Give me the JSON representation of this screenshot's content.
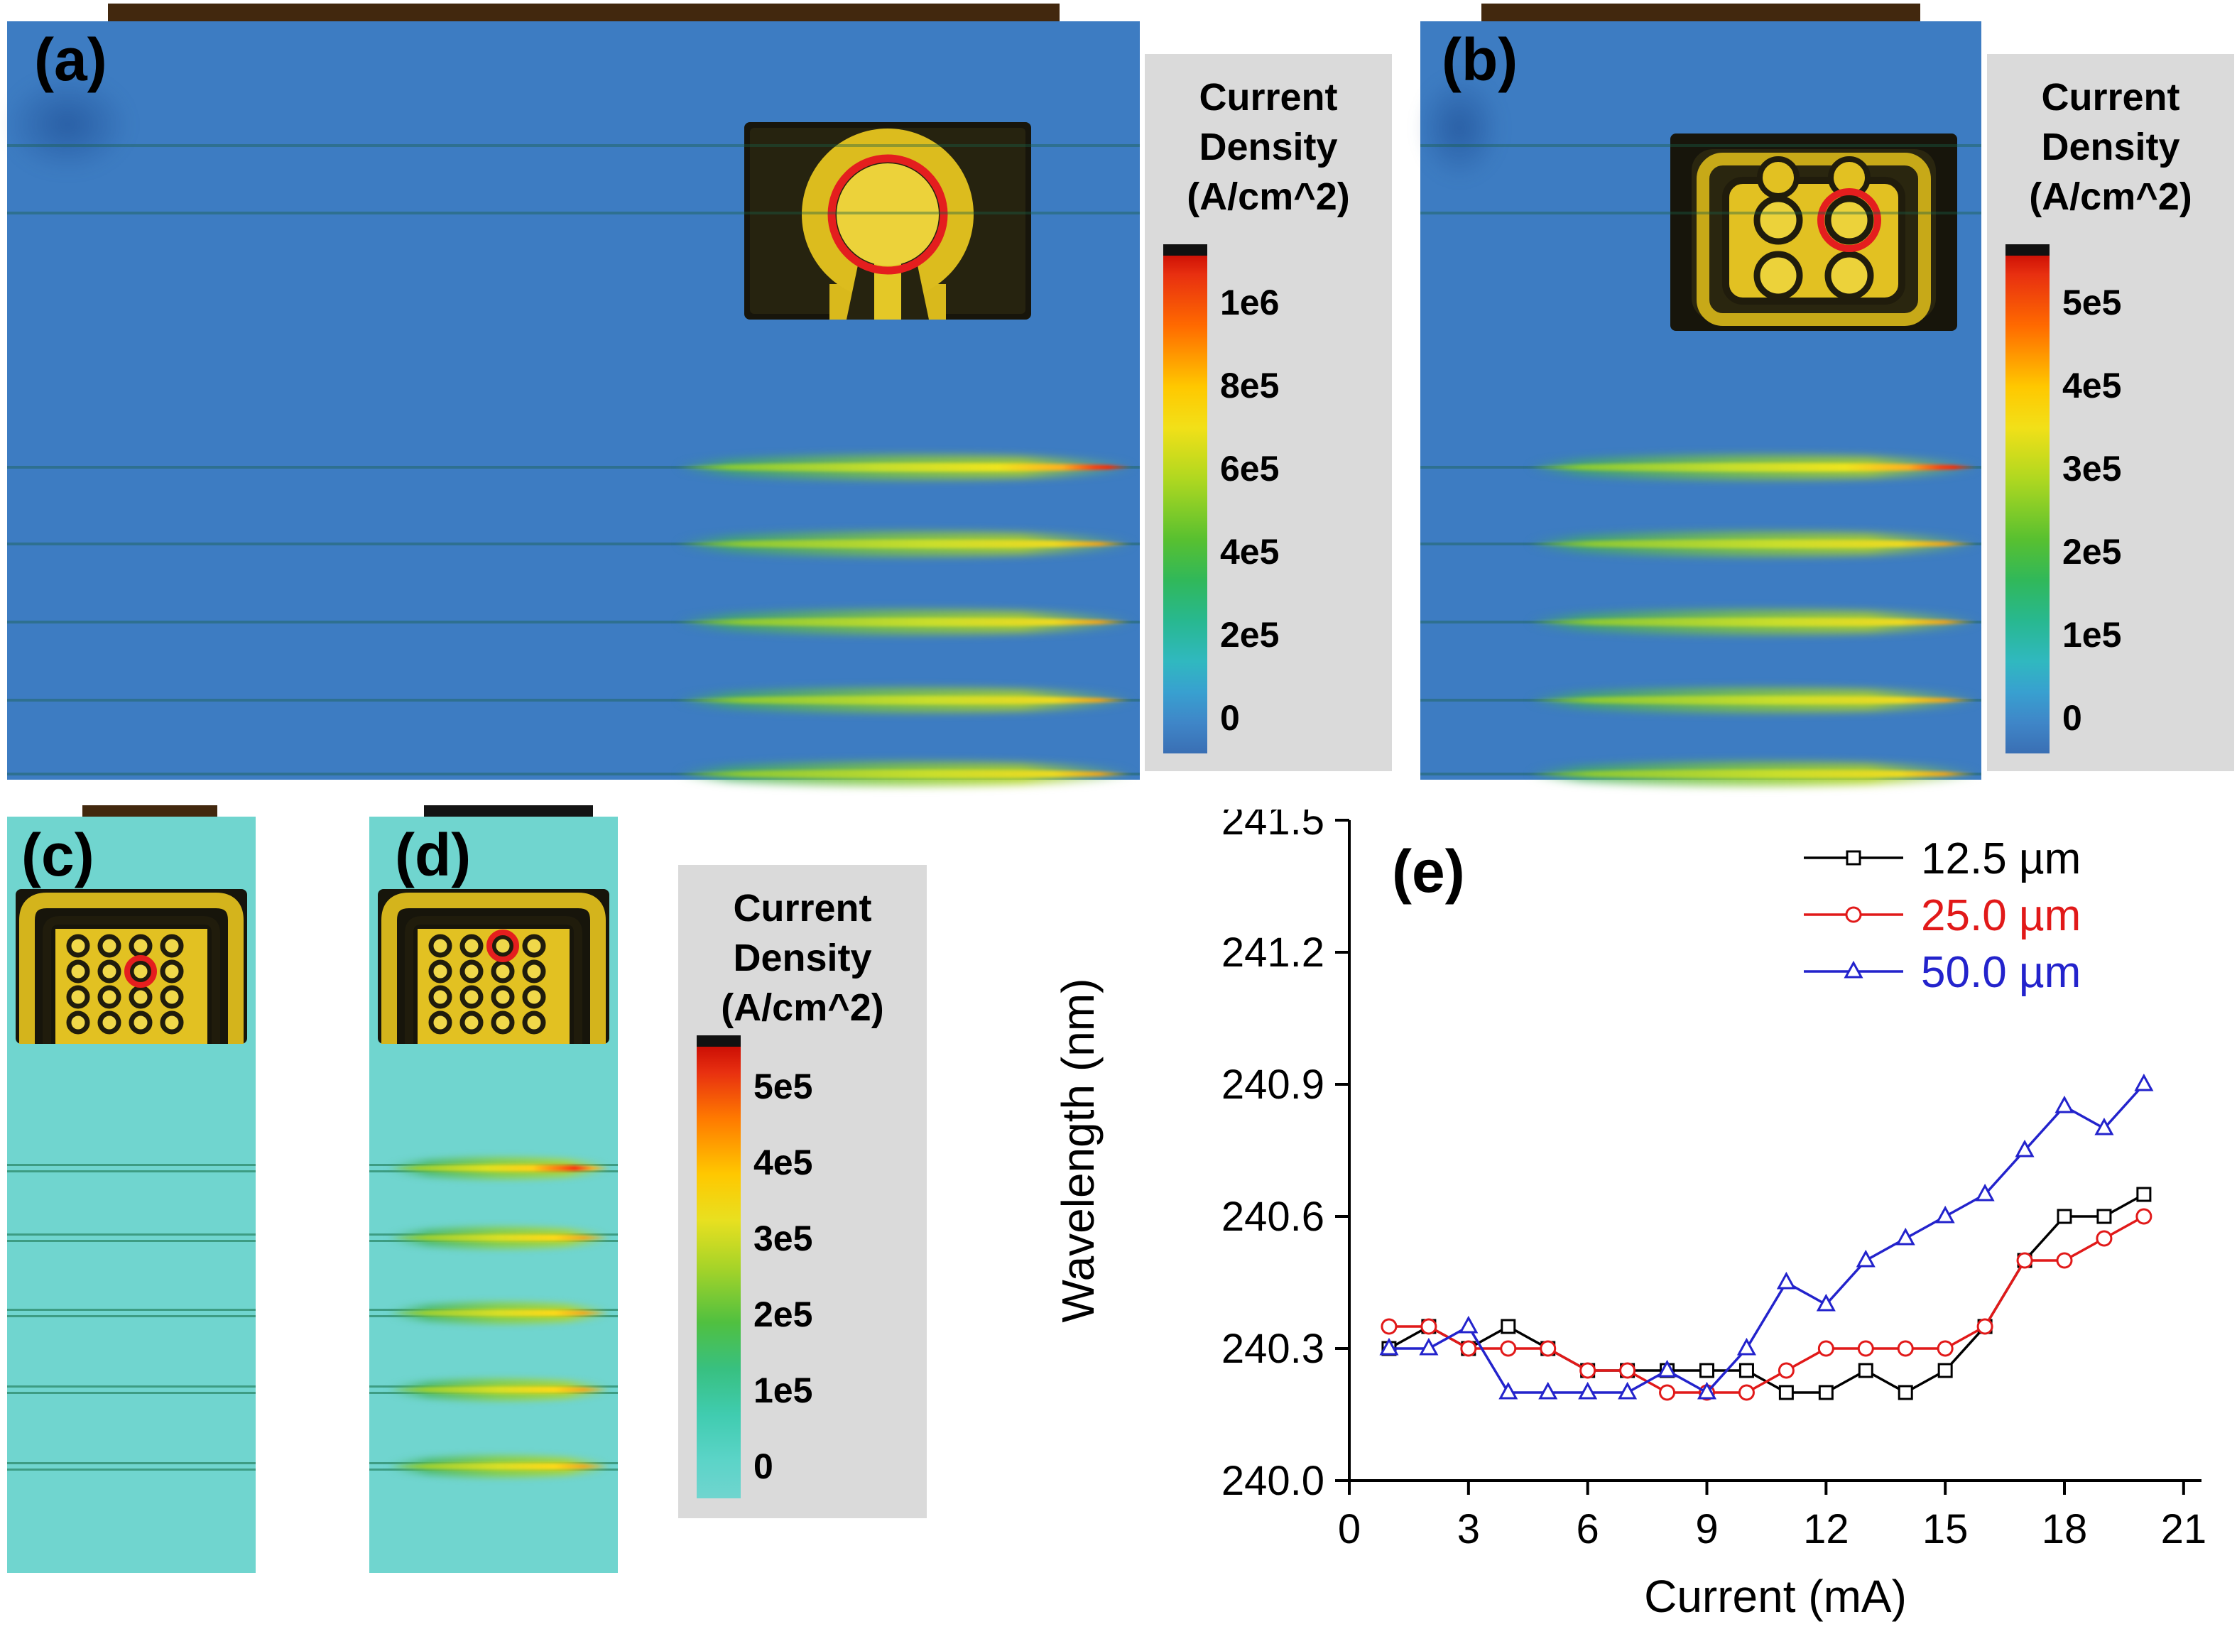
{
  "panels": {
    "a": {
      "label": "(a)"
    },
    "b": {
      "label": "(b)"
    },
    "c": {
      "label": "(c)"
    },
    "d": {
      "label": "(d)"
    },
    "e": {
      "label": "(e)"
    }
  },
  "colorbars": {
    "title": [
      "Current",
      "Density",
      "(A/cm^2)"
    ],
    "a": {
      "ticks": [
        "1e6",
        "8e5",
        "6e5",
        "4e5",
        "2e5",
        "0"
      ]
    },
    "b": {
      "ticks": [
        "5e5",
        "4e5",
        "3e5",
        "2e5",
        "1e5",
        "0"
      ]
    },
    "cd": {
      "ticks": [
        "5e5",
        "4e5",
        "3e5",
        "2e5",
        "1e5",
        "0"
      ]
    }
  },
  "chart_data": {
    "type": "line",
    "title": "",
    "xlabel": "Current (mA)",
    "ylabel": "Wavelength (nm)",
    "xlim": [
      0,
      21.45
    ],
    "ylim": [
      240.0,
      241.5
    ],
    "xticks": [
      0,
      3,
      6,
      9,
      12,
      15,
      18,
      21
    ],
    "yticks": [
      240.0,
      240.3,
      240.6,
      240.9,
      241.2,
      241.5
    ],
    "legend_position": "top-right",
    "x": [
      1,
      2,
      3,
      4,
      5,
      6,
      7,
      8,
      9,
      10,
      11,
      12,
      13,
      14,
      15,
      16,
      17,
      18,
      19,
      20
    ],
    "series": [
      {
        "name": "12.5 µm",
        "color": "#000000",
        "marker": "square",
        "y": [
          240.3,
          240.35,
          240.3,
          240.35,
          240.3,
          240.25,
          240.25,
          240.25,
          240.25,
          240.25,
          240.2,
          240.2,
          240.25,
          240.2,
          240.25,
          240.35,
          240.5,
          240.6,
          240.6,
          240.65
        ]
      },
      {
        "name": "25.0 µm",
        "color": "#e11919",
        "marker": "circle",
        "y": [
          240.35,
          240.35,
          240.3,
          240.3,
          240.3,
          240.25,
          240.25,
          240.2,
          240.2,
          240.2,
          240.25,
          240.3,
          240.3,
          240.3,
          240.3,
          240.35,
          240.5,
          240.5,
          240.55,
          240.6
        ]
      },
      {
        "name": "50.0 µm",
        "color": "#2323cc",
        "marker": "triangle",
        "y": [
          240.3,
          240.3,
          240.35,
          240.2,
          240.2,
          240.2,
          240.2,
          240.25,
          240.2,
          240.3,
          240.45,
          240.4,
          240.5,
          240.55,
          240.6,
          240.65,
          240.75,
          240.85,
          240.8,
          240.9
        ]
      }
    ]
  }
}
